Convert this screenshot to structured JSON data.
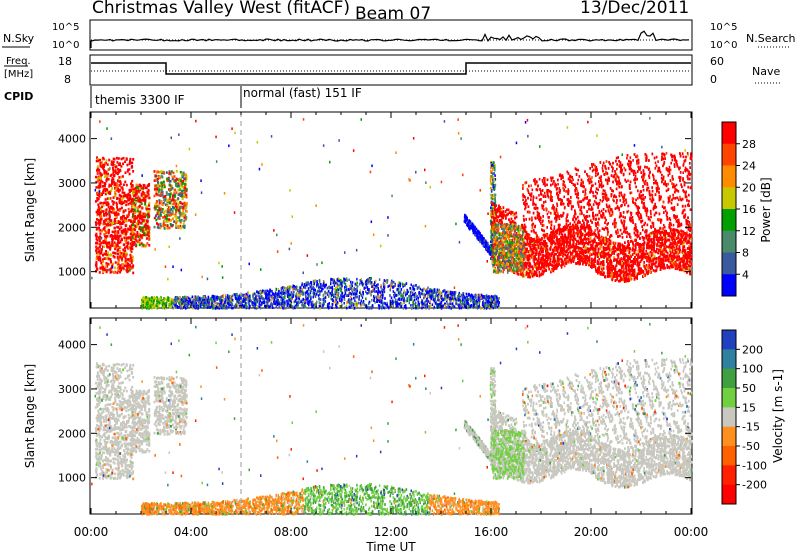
{
  "header": {
    "title": "Christmas Valley West (fitACF)",
    "beam": "Beam 07",
    "date": "13/Dec/2011"
  },
  "top_panels": {
    "nsky_label": "N.Sky",
    "nsearch_label": "N.Search",
    "nsky_ticks": [
      "10^5",
      "10^0"
    ],
    "nsearch_ticks": [
      "10^5",
      "10^0"
    ],
    "freq_label_1": "Freq.",
    "freq_label_2": "[MHz]",
    "freq_ticks": [
      "18",
      "8"
    ],
    "nave_label": "Nave",
    "nave_ticks": [
      "60",
      "0"
    ],
    "cpid_label": "CPID",
    "cpid_segments": [
      {
        "label": "themis 3300 IF",
        "start_hour": 0
      },
      {
        "label": "normal (fast) 151 IF",
        "start_hour": 6
      }
    ]
  },
  "chart_data": [
    {
      "type": "heatmap",
      "name": "power",
      "ylabel": "Slant Range [km]",
      "xlabel": "",
      "y_ticks": [
        1000,
        2000,
        3000,
        4000
      ],
      "ylim": [
        180,
        4600
      ],
      "xlim_hours": [
        0,
        24
      ],
      "colorbar_label": "Power [dB]",
      "colorbar_ticks": [
        "28",
        "24",
        "20",
        "16",
        "12",
        "8",
        "4"
      ],
      "colorbar_colors": [
        "#ff0000",
        "#ff4400",
        "#ff8c00",
        "#c8c800",
        "#00a000",
        "#4a8a6a",
        "#3a5aa0",
        "#0000ff"
      ]
    },
    {
      "type": "heatmap",
      "name": "velocity",
      "ylabel": "Slant Range [km]",
      "xlabel": "Time UT",
      "y_ticks": [
        1000,
        2000,
        3000,
        4000
      ],
      "ylim": [
        180,
        4600
      ],
      "xlim_hours": [
        0,
        24
      ],
      "x_tick_labels": [
        "00:00",
        "04:00",
        "08:00",
        "12:00",
        "16:00",
        "20:00",
        "00:00"
      ],
      "colorbar_label": "Velocity [m s-1]",
      "colorbar_ticks": [
        "200",
        "100",
        "50",
        "15",
        "-15",
        "-50",
        "-100",
        "-200"
      ],
      "colorbar_colors": [
        "#2040c0",
        "#3080a0",
        "#40a040",
        "#70d040",
        "#c8c8c0",
        "#ff9020",
        "#ff6000",
        "#ff2000",
        "#ff0000"
      ]
    }
  ]
}
